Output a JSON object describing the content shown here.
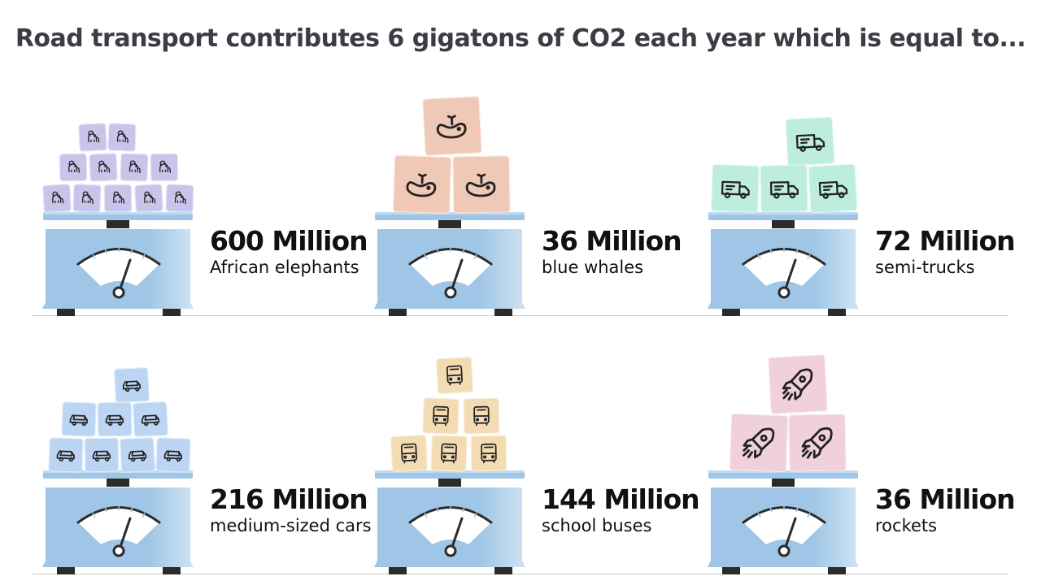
{
  "title": "Road transport contributes 6 gigatons of CO2 each year which is equal to...",
  "items": [
    {
      "amount": "600 Million",
      "desc": "African elephants",
      "icon": "elephant-icon",
      "color": "#c9c4ea",
      "count": 11
    },
    {
      "amount": "36 Million",
      "desc": "blue whales",
      "icon": "whale-icon",
      "color": "#f0c8b6",
      "count": 3
    },
    {
      "amount": "72 Million",
      "desc": "semi-trucks",
      "icon": "truck-icon",
      "color": "#bdeedd",
      "count": 4
    },
    {
      "amount": "216 Million",
      "desc": "medium-sized cars",
      "icon": "car-icon",
      "color": "#bcd5f3",
      "count": 8
    },
    {
      "amount": "144 Million",
      "desc": "school buses",
      "icon": "bus-icon",
      "color": "#f3dcb3",
      "count": 6
    },
    {
      "amount": "36 Million",
      "desc": "rockets",
      "icon": "rocket-icon",
      "color": "#efd0db",
      "count": 3
    }
  ],
  "colors": {
    "scale": "#9fc6e6",
    "scale_light": "#cfe3f3",
    "feet": "#2b2b2b",
    "title": "#3a3d44"
  }
}
